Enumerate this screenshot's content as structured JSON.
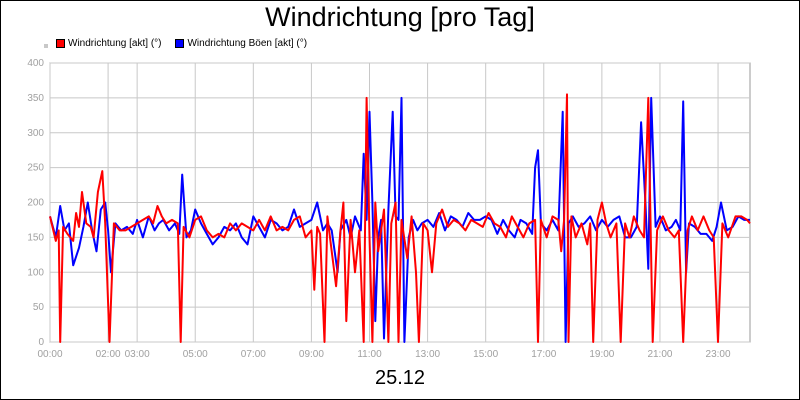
{
  "chart_data": {
    "type": "line",
    "title": "Windrichtung [pro Tag]",
    "date_label": "25.12",
    "y_ticks": [
      0,
      50,
      100,
      150,
      200,
      250,
      300,
      350,
      400
    ],
    "x_ticks": [
      "00:00",
      "02:00",
      "03:00",
      "05:00",
      "07:00",
      "09:00",
      "11:00",
      "13:00",
      "15:00",
      "17:00",
      "19:00",
      "21:00",
      "23:00"
    ],
    "x_tick_hours": [
      0,
      2,
      3,
      5,
      7,
      9,
      11,
      13,
      15,
      17,
      19,
      21,
      23
    ],
    "xlim_hours": [
      0,
      24.1
    ],
    "ylim": [
      0,
      400
    ],
    "grid": true,
    "series": [
      {
        "name": "Windrichtung [akt] (°)",
        "color": "#ff0000",
        "points": [
          [
            0,
            180
          ],
          [
            0.2,
            145
          ],
          [
            0.3,
            160
          ],
          [
            0.35,
            0
          ],
          [
            0.45,
            165
          ],
          [
            0.6,
            155
          ],
          [
            0.8,
            145
          ],
          [
            0.9,
            185
          ],
          [
            1.0,
            165
          ],
          [
            1.1,
            215
          ],
          [
            1.25,
            170
          ],
          [
            1.4,
            165
          ],
          [
            1.5,
            150
          ],
          [
            1.65,
            215
          ],
          [
            1.8,
            245
          ],
          [
            1.9,
            170
          ],
          [
            2.05,
            0
          ],
          [
            2.2,
            170
          ],
          [
            2.4,
            160
          ],
          [
            2.6,
            160
          ],
          [
            2.8,
            165
          ],
          [
            3.0,
            170
          ],
          [
            3.2,
            175
          ],
          [
            3.4,
            180
          ],
          [
            3.55,
            170
          ],
          [
            3.7,
            195
          ],
          [
            3.85,
            180
          ],
          [
            4.0,
            170
          ],
          [
            4.2,
            175
          ],
          [
            4.4,
            170
          ],
          [
            4.5,
            0
          ],
          [
            4.6,
            165
          ],
          [
            4.8,
            150
          ],
          [
            5.0,
            175
          ],
          [
            5.2,
            180
          ],
          [
            5.4,
            160
          ],
          [
            5.6,
            150
          ],
          [
            5.8,
            155
          ],
          [
            6.0,
            150
          ],
          [
            6.2,
            170
          ],
          [
            6.4,
            160
          ],
          [
            6.6,
            170
          ],
          [
            6.8,
            165
          ],
          [
            7.0,
            160
          ],
          [
            7.2,
            175
          ],
          [
            7.4,
            160
          ],
          [
            7.6,
            180
          ],
          [
            7.8,
            160
          ],
          [
            8.0,
            165
          ],
          [
            8.2,
            160
          ],
          [
            8.4,
            175
          ],
          [
            8.6,
            180
          ],
          [
            8.8,
            150
          ],
          [
            9.0,
            160
          ],
          [
            9.1,
            75
          ],
          [
            9.2,
            165
          ],
          [
            9.3,
            155
          ],
          [
            9.45,
            0
          ],
          [
            9.55,
            180
          ],
          [
            9.7,
            130
          ],
          [
            9.85,
            80
          ],
          [
            10.0,
            160
          ],
          [
            10.1,
            200
          ],
          [
            10.2,
            30
          ],
          [
            10.35,
            175
          ],
          [
            10.5,
            100
          ],
          [
            10.65,
            160
          ],
          [
            10.8,
            0
          ],
          [
            10.9,
            350
          ],
          [
            11.0,
            150
          ],
          [
            11.1,
            0
          ],
          [
            11.2,
            200
          ],
          [
            11.3,
            130
          ],
          [
            11.5,
            190
          ],
          [
            11.65,
            0
          ],
          [
            11.75,
            170
          ],
          [
            11.9,
            200
          ],
          [
            12.0,
            0
          ],
          [
            12.1,
            175
          ],
          [
            12.3,
            120
          ],
          [
            12.45,
            180
          ],
          [
            12.6,
            100
          ],
          [
            12.7,
            0
          ],
          [
            12.85,
            170
          ],
          [
            13.0,
            160
          ],
          [
            13.15,
            100
          ],
          [
            13.3,
            170
          ],
          [
            13.5,
            190
          ],
          [
            13.7,
            165
          ],
          [
            13.9,
            175
          ],
          [
            14.1,
            170
          ],
          [
            14.3,
            160
          ],
          [
            14.5,
            175
          ],
          [
            14.7,
            170
          ],
          [
            14.9,
            165
          ],
          [
            15.1,
            185
          ],
          [
            15.3,
            170
          ],
          [
            15.5,
            165
          ],
          [
            15.7,
            150
          ],
          [
            15.9,
            180
          ],
          [
            16.1,
            165
          ],
          [
            16.3,
            150
          ],
          [
            16.5,
            170
          ],
          [
            16.7,
            175
          ],
          [
            16.8,
            0
          ],
          [
            16.9,
            175
          ],
          [
            17.1,
            150
          ],
          [
            17.3,
            180
          ],
          [
            17.5,
            175
          ],
          [
            17.6,
            130
          ],
          [
            17.7,
            175
          ],
          [
            17.8,
            355
          ],
          [
            17.85,
            0
          ],
          [
            17.95,
            180
          ],
          [
            18.1,
            150
          ],
          [
            18.3,
            170
          ],
          [
            18.5,
            140
          ],
          [
            18.6,
            170
          ],
          [
            18.7,
            0
          ],
          [
            18.85,
            175
          ],
          [
            19.0,
            200
          ],
          [
            19.15,
            170
          ],
          [
            19.3,
            150
          ],
          [
            19.5,
            170
          ],
          [
            19.65,
            0
          ],
          [
            19.8,
            170
          ],
          [
            19.95,
            150
          ],
          [
            20.1,
            180
          ],
          [
            20.3,
            160
          ],
          [
            20.45,
            150
          ],
          [
            20.6,
            350
          ],
          [
            20.75,
            0
          ],
          [
            20.9,
            160
          ],
          [
            21.1,
            180
          ],
          [
            21.3,
            160
          ],
          [
            21.5,
            150
          ],
          [
            21.65,
            160
          ],
          [
            21.8,
            0
          ],
          [
            21.95,
            160
          ],
          [
            22.1,
            180
          ],
          [
            22.3,
            160
          ],
          [
            22.5,
            180
          ],
          [
            22.7,
            160
          ],
          [
            22.85,
            150
          ],
          [
            23.0,
            0
          ],
          [
            23.15,
            170
          ],
          [
            23.35,
            150
          ],
          [
            23.6,
            180
          ],
          [
            23.8,
            180
          ],
          [
            24.0,
            175
          ],
          [
            24.1,
            170
          ]
        ]
      },
      {
        "name": "Windrichtung Böen [akt] (°)",
        "color": "#0000ff",
        "points": [
          [
            0,
            180
          ],
          [
            0.2,
            150
          ],
          [
            0.35,
            195
          ],
          [
            0.5,
            160
          ],
          [
            0.65,
            170
          ],
          [
            0.8,
            110
          ],
          [
            1.0,
            135
          ],
          [
            1.15,
            165
          ],
          [
            1.3,
            200
          ],
          [
            1.45,
            160
          ],
          [
            1.6,
            130
          ],
          [
            1.75,
            190
          ],
          [
            1.9,
            200
          ],
          [
            2.0,
            160
          ],
          [
            2.1,
            100
          ],
          [
            2.25,
            170
          ],
          [
            2.45,
            160
          ],
          [
            2.65,
            165
          ],
          [
            2.85,
            155
          ],
          [
            3.0,
            175
          ],
          [
            3.2,
            150
          ],
          [
            3.4,
            180
          ],
          [
            3.6,
            160
          ],
          [
            3.75,
            170
          ],
          [
            3.9,
            175
          ],
          [
            4.1,
            160
          ],
          [
            4.3,
            170
          ],
          [
            4.45,
            155
          ],
          [
            4.55,
            240
          ],
          [
            4.7,
            150
          ],
          [
            4.85,
            160
          ],
          [
            5.0,
            190
          ],
          [
            5.2,
            170
          ],
          [
            5.4,
            155
          ],
          [
            5.6,
            140
          ],
          [
            5.8,
            150
          ],
          [
            6.0,
            165
          ],
          [
            6.2,
            160
          ],
          [
            6.4,
            170
          ],
          [
            6.6,
            150
          ],
          [
            6.8,
            140
          ],
          [
            7.0,
            180
          ],
          [
            7.2,
            165
          ],
          [
            7.4,
            150
          ],
          [
            7.6,
            175
          ],
          [
            7.8,
            170
          ],
          [
            8.0,
            160
          ],
          [
            8.2,
            165
          ],
          [
            8.4,
            190
          ],
          [
            8.6,
            165
          ],
          [
            8.8,
            170
          ],
          [
            9.0,
            175
          ],
          [
            9.2,
            200
          ],
          [
            9.4,
            160
          ],
          [
            9.55,
            170
          ],
          [
            9.7,
            160
          ],
          [
            9.9,
            100
          ],
          [
            10.0,
            160
          ],
          [
            10.2,
            175
          ],
          [
            10.35,
            150
          ],
          [
            10.5,
            180
          ],
          [
            10.7,
            160
          ],
          [
            10.8,
            270
          ],
          [
            10.9,
            175
          ],
          [
            11.0,
            330
          ],
          [
            11.1,
            200
          ],
          [
            11.2,
            30
          ],
          [
            11.3,
            150
          ],
          [
            11.4,
            175
          ],
          [
            11.5,
            5
          ],
          [
            11.65,
            190
          ],
          [
            11.8,
            330
          ],
          [
            11.9,
            180
          ],
          [
            12.0,
            175
          ],
          [
            12.1,
            350
          ],
          [
            12.2,
            0
          ],
          [
            12.35,
            150
          ],
          [
            12.5,
            175
          ],
          [
            12.65,
            160
          ],
          [
            12.8,
            170
          ],
          [
            13.0,
            175
          ],
          [
            13.2,
            165
          ],
          [
            13.4,
            185
          ],
          [
            13.6,
            160
          ],
          [
            13.8,
            180
          ],
          [
            14.0,
            175
          ],
          [
            14.2,
            165
          ],
          [
            14.4,
            185
          ],
          [
            14.6,
            175
          ],
          [
            14.8,
            175
          ],
          [
            15.0,
            180
          ],
          [
            15.2,
            175
          ],
          [
            15.4,
            155
          ],
          [
            15.6,
            175
          ],
          [
            15.8,
            160
          ],
          [
            16.0,
            150
          ],
          [
            16.2,
            175
          ],
          [
            16.4,
            170
          ],
          [
            16.6,
            155
          ],
          [
            16.7,
            250
          ],
          [
            16.8,
            275
          ],
          [
            16.9,
            170
          ],
          [
            17.1,
            160
          ],
          [
            17.3,
            175
          ],
          [
            17.5,
            160
          ],
          [
            17.65,
            330
          ],
          [
            17.75,
            0
          ],
          [
            17.85,
            170
          ],
          [
            18.0,
            180
          ],
          [
            18.2,
            165
          ],
          [
            18.4,
            170
          ],
          [
            18.6,
            180
          ],
          [
            18.8,
            160
          ],
          [
            19.0,
            175
          ],
          [
            19.2,
            165
          ],
          [
            19.4,
            175
          ],
          [
            19.6,
            180
          ],
          [
            19.8,
            150
          ],
          [
            20.0,
            150
          ],
          [
            20.2,
            165
          ],
          [
            20.35,
            315
          ],
          [
            20.5,
            200
          ],
          [
            20.6,
            105
          ],
          [
            20.7,
            350
          ],
          [
            20.85,
            165
          ],
          [
            21.0,
            180
          ],
          [
            21.2,
            160
          ],
          [
            21.4,
            165
          ],
          [
            21.55,
            175
          ],
          [
            21.7,
            160
          ],
          [
            21.8,
            345
          ],
          [
            21.9,
            100
          ],
          [
            22.0,
            170
          ],
          [
            22.2,
            165
          ],
          [
            22.4,
            155
          ],
          [
            22.6,
            155
          ],
          [
            22.8,
            145
          ],
          [
            22.95,
            165
          ],
          [
            23.1,
            200
          ],
          [
            23.3,
            160
          ],
          [
            23.5,
            165
          ],
          [
            23.7,
            180
          ],
          [
            23.9,
            175
          ],
          [
            24.1,
            175
          ]
        ]
      }
    ]
  }
}
